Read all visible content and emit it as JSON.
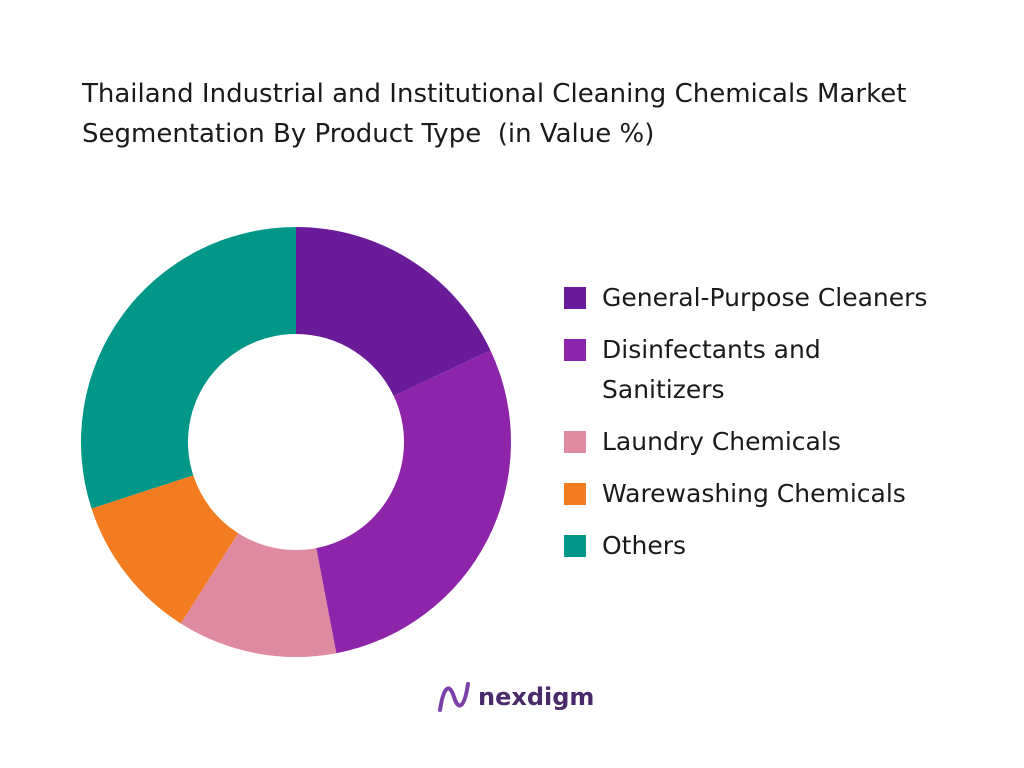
{
  "chart_data": {
    "type": "donut",
    "title": "Thailand Industrial and Institutional Cleaning Chemicals Market Segmentation By Product Type  (in Value %)",
    "categories": [
      "General-Purpose Cleaners",
      "Disinfectants and Sanitizers",
      "Laundry Chemicals",
      "Warewashing Chemicals",
      "Others"
    ],
    "values": [
      18,
      29,
      12,
      11,
      30
    ],
    "colors": [
      "#6a1b9a",
      "#8e24aa",
      "#e08aa2",
      "#f47c20",
      "#009688"
    ],
    "legend": "right"
  },
  "brand": "nexdigm"
}
